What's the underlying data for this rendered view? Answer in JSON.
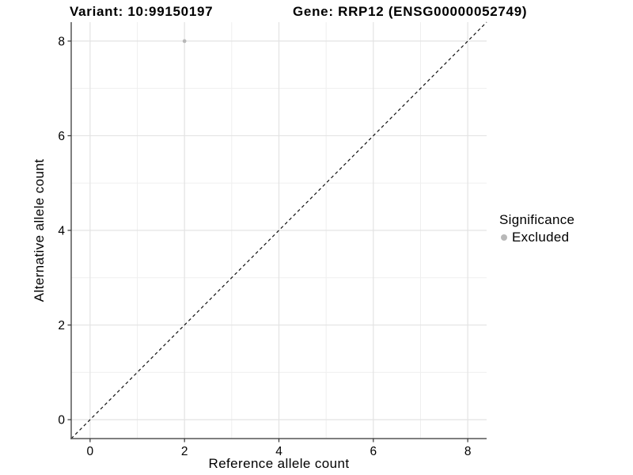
{
  "figure": {
    "legend": {
      "title": "Significance",
      "entries": [
        {
          "label": "Excluded",
          "color": "#b8b8b8"
        }
      ]
    }
  },
  "chart_data": {
    "type": "scatter",
    "title_left": "Variant: 10:99150197",
    "title_right": "Gene: RRP12 (ENSG00000052749)",
    "xlabel": "Reference allele count",
    "ylabel": "Alternative allele count",
    "xlim": [
      -0.4,
      8.4
    ],
    "ylim": [
      -0.4,
      8.4
    ],
    "x_ticks": [
      0,
      2,
      4,
      6,
      8
    ],
    "y_ticks": [
      0,
      2,
      4,
      6,
      8
    ],
    "minor_ticks": [
      1,
      3,
      5,
      7
    ],
    "grid": true,
    "legend_position": "right",
    "series": [
      {
        "name": "Excluded",
        "color": "#b8b8b8",
        "points": [
          {
            "x": 2,
            "y": 8
          }
        ]
      }
    ],
    "reference_line": {
      "type": "identity",
      "style": "dashed",
      "color": "#111111"
    },
    "colors": {
      "grid_major": "#e3e3e3",
      "grid_minor": "#efefef",
      "axis_line": "#555555",
      "tick": "#333333",
      "text": "#000000"
    }
  }
}
